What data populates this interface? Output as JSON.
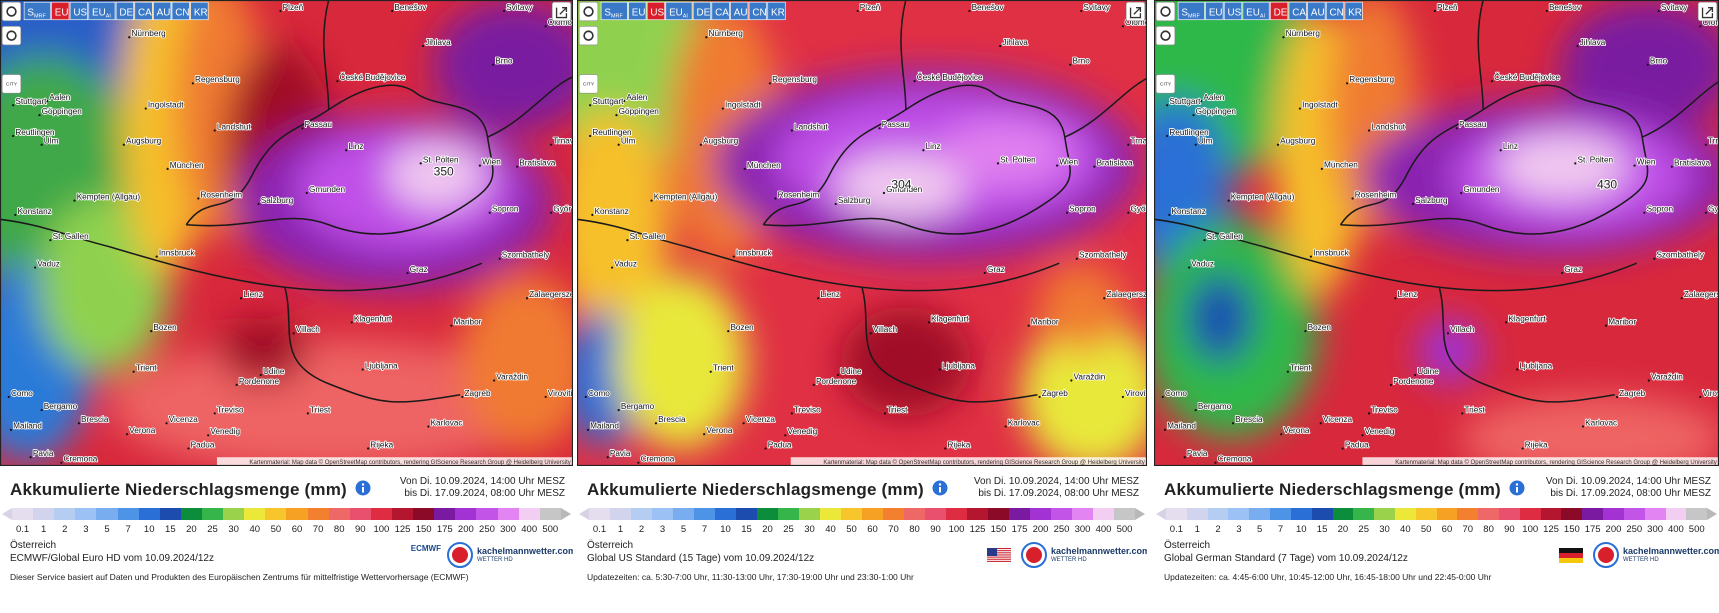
{
  "map_labels": [
    "Nürnberg",
    "Plzeň",
    "Benešov",
    "Svitavy",
    "Olomouc",
    "Jihlava",
    "Brno",
    "České Budějovice",
    "Regensburg",
    "Aalen",
    "Göppingen",
    "Ingolstadt",
    "Stuttgart",
    "Passau",
    "Landshut",
    "Ulm",
    "Augsburg",
    "Linz",
    "Trnava",
    "Reutlingen",
    "München",
    "St. Pölten",
    "Wien",
    "Bratislava",
    "Konstanz",
    "Kempten (Allgäu)",
    "Rosenheim",
    "Salzburg",
    "Gmunden",
    "Sopron",
    "Győr",
    "St. Gallen",
    "Vaduz",
    "Innsbruck",
    "Graz",
    "Szombathely",
    "Lienz",
    "Zalaegerszeg",
    "Bozen",
    "Villach",
    "Klagenfurt",
    "Maribor",
    "Varaždin",
    "Udine",
    "Trient",
    "Ljubljana",
    "Pordenone",
    "Zagreb",
    "Como",
    "Bergamo",
    "Treviso",
    "Brescia",
    "Verona",
    "Vicenza",
    "Venedig",
    "Triest",
    "Karlovac",
    "Mailand",
    "Padua",
    "Rijeka",
    "Cremona",
    "Pavia",
    "Virovitica"
  ],
  "legend": {
    "values": [
      0.1,
      1,
      2,
      3,
      5,
      7,
      10,
      15,
      20,
      25,
      30,
      40,
      50,
      60,
      70,
      80,
      90,
      100,
      125,
      150,
      175,
      200,
      250,
      300,
      400,
      500
    ],
    "colors": [
      "#e4deee",
      "#d2d4ee",
      "#b6cdf2",
      "#9cc1f4",
      "#78aef0",
      "#4d93e6",
      "#2a6fd6",
      "#1c4cae",
      "#0b8d3b",
      "#35b54a",
      "#9ad24c",
      "#ece83a",
      "#f7c52c",
      "#f6a024",
      "#f2802e",
      "#ee6868",
      "#e8506e",
      "#de2c42",
      "#b3162e",
      "#8a0a28",
      "#7a1aa0",
      "#a232d2",
      "#c254e8",
      "#e284f2",
      "#f2cef2",
      "#c6c6c6"
    ]
  },
  "panels": [
    {
      "tabs": [
        {
          "text": "S",
          "sub": "MRF"
        },
        {
          "text": "EU",
          "active": true
        },
        {
          "text": "US"
        },
        {
          "text": "EU",
          "sub": "AI"
        },
        {
          "text": "DE"
        },
        {
          "text": "CA"
        },
        {
          "text": "AU"
        },
        {
          "text": "CN"
        },
        {
          "text": "KR"
        }
      ],
      "city_button": "CITY",
      "max_label": "350",
      "attribution": "Kartenmaterial: Map data © OpenStreetMap contributors, rendering GIScience Research Group @ Heidelberg University",
      "title": "Akkumulierte Niederschlagsmenge (mm)",
      "date_from": "Von Di. 10.09.2024, 14:00 Uhr MESZ",
      "date_to": "bis Di. 17.09.2024, 08:00 Uhr MESZ",
      "region": "Österreich",
      "model": "ECMWF/Global Euro HD vom 10.09.2024/12z",
      "partner_logo": "ECMWF",
      "brand": "kachelmannwetter.com",
      "brand_sub": "WETTER HD",
      "note": "Dieser Service basiert auf Daten und Produkten des Europäischen Zentrums für mittelfristige Wettervorhersage (ECMWF)"
    },
    {
      "tabs": [
        {
          "text": "S",
          "sub": "MRF"
        },
        {
          "text": "EU"
        },
        {
          "text": "US",
          "active": true
        },
        {
          "text": "EU",
          "sub": "AI"
        },
        {
          "text": "DE"
        },
        {
          "text": "CA"
        },
        {
          "text": "AU"
        },
        {
          "text": "CN"
        },
        {
          "text": "KR"
        }
      ],
      "city_button": "CITY",
      "max_label": "304",
      "attribution": "Kartenmaterial: Map data © OpenStreetMap contributors, rendering GIScience Research Group @ Heidelberg University",
      "title": "Akkumulierte Niederschlagsmenge (mm)",
      "date_from": "Von Di. 10.09.2024, 14:00 Uhr MESZ",
      "date_to": "bis Di. 17.09.2024, 08:00 Uhr MESZ",
      "region": "Österreich",
      "model": "Global US Standard (15 Tage) vom 10.09.2024/12z",
      "brand": "kachelmannwetter.com",
      "brand_sub": "WETTER HD",
      "note": "Updatezeiten: ca. 5:30-7:00 Uhr, 11:30-13:00 Uhr, 17:30-19:00 Uhr und 23:30-1:00 Uhr"
    },
    {
      "tabs": [
        {
          "text": "S",
          "sub": "MRF"
        },
        {
          "text": "EU"
        },
        {
          "text": "US"
        },
        {
          "text": "EU",
          "sub": "AI"
        },
        {
          "text": "DE",
          "active": true
        },
        {
          "text": "CA"
        },
        {
          "text": "AU"
        },
        {
          "text": "CN"
        },
        {
          "text": "KR"
        }
      ],
      "city_button": "CITY",
      "max_label": "430",
      "attribution": "Kartenmaterial: Map data © OpenStreetMap contributors, rendering GIScience Research Group @ Heidelberg University",
      "title": "Akkumulierte Niederschlagsmenge (mm)",
      "date_from": "Von Di. 10.09.2024, 14:00 Uhr MESZ",
      "date_to": "bis Di. 17.09.2024, 08:00 Uhr MESZ",
      "region": "Österreich",
      "model": "Global German Standard (7 Tage) vom 10.09.2024/12z",
      "brand": "kachelmannwetter.com",
      "brand_sub": "WETTER HD",
      "note": "Updatezeiten: ca. 4:45-6:00 Uhr, 10:45-12:00 Uhr, 16:45-18:00 Uhr und 22:45-0:00 Uhr"
    }
  ]
}
